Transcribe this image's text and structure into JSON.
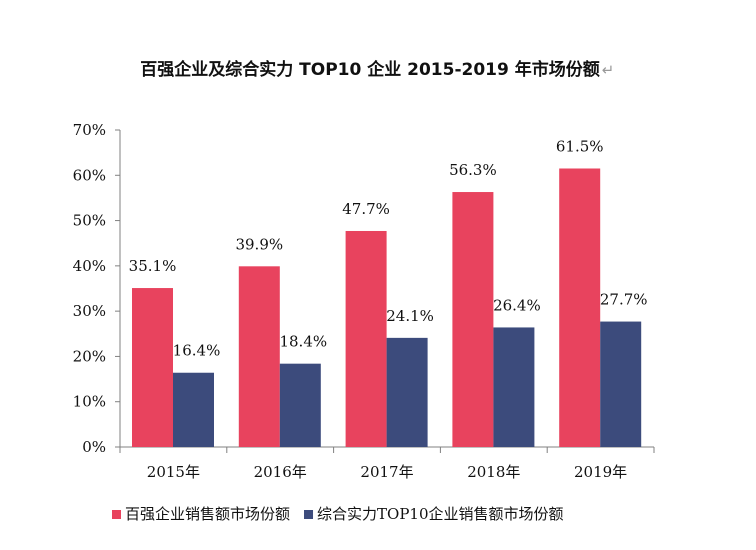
{
  "chart_data": {
    "type": "bar",
    "title": "百强企业及综合实力 TOP10 企业 2015-2019 年市场份额",
    "title_trailing_mark": "↵",
    "categories": [
      "2015年",
      "2016年",
      "2017年",
      "2018年",
      "2019年"
    ],
    "series": [
      {
        "name": "百强企业销售额市场份额",
        "color": "#e8435e",
        "values": [
          35.1,
          39.9,
          47.7,
          56.3,
          61.5
        ],
        "labels": [
          "35.1%",
          "39.9%",
          "47.7%",
          "56.3%",
          "61.5%"
        ]
      },
      {
        "name": "综合实力TOP10企业销售额市场份额",
        "color": "#3c4b7c",
        "values": [
          16.4,
          18.4,
          24.1,
          26.4,
          27.7
        ],
        "labels": [
          "16.4%",
          "18.4%",
          "24.1%",
          "26.4%",
          "27.7%"
        ]
      }
    ],
    "ylim": [
      0,
      70
    ],
    "yticks": [
      0,
      10,
      20,
      30,
      40,
      50,
      60,
      70
    ],
    "ytick_labels": [
      "0%",
      "10%",
      "20%",
      "30%",
      "40%",
      "50%",
      "60%",
      "70%"
    ],
    "xlabel": "",
    "ylabel": "",
    "grid": false,
    "legend_position": "bottom"
  }
}
